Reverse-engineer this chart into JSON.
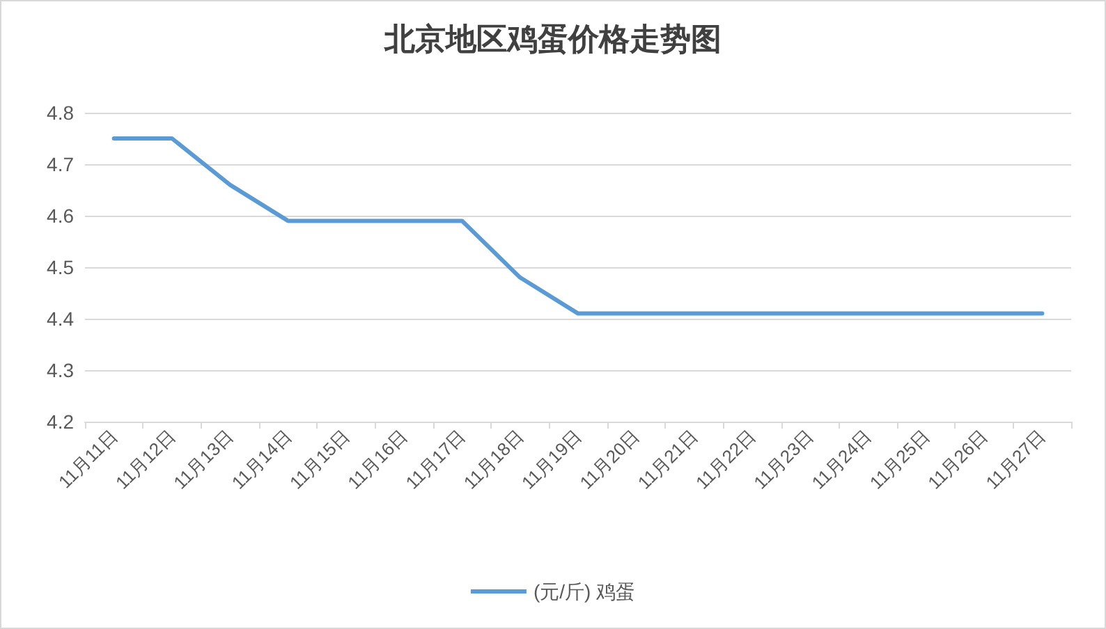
{
  "chart_data": {
    "type": "line",
    "title": "北京地区鸡蛋价格走势图",
    "categories": [
      "11月11日",
      "11月12日",
      "11月13日",
      "11月14日",
      "11月15日",
      "11月16日",
      "11月17日",
      "11月18日",
      "11月19日",
      "11月20日",
      "11月21日",
      "11月22日",
      "11月23日",
      "11月24日",
      "11月25日",
      "11月26日",
      "11月27日"
    ],
    "series": [
      {
        "name": "(元/斤) 鸡蛋",
        "color": "#5b9bd5",
        "values": [
          4.75,
          4.75,
          4.66,
          4.59,
          4.59,
          4.59,
          4.59,
          4.48,
          4.41,
          4.41,
          4.41,
          4.41,
          4.41,
          4.41,
          4.41,
          4.41,
          4.41
        ]
      }
    ],
    "ylim": [
      4.2,
      4.8
    ],
    "yticks": [
      4.2,
      4.3,
      4.4,
      4.5,
      4.6,
      4.7,
      4.8
    ],
    "grid": "y",
    "legend": "bottom",
    "marker": "none",
    "line_style": "solid"
  }
}
